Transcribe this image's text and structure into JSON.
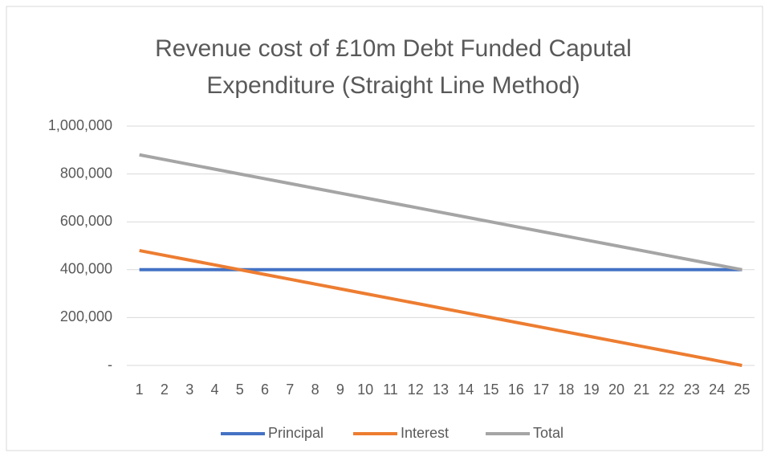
{
  "chart_data": {
    "type": "line",
    "title": "Revenue cost of £10m Debt Funded Caputal Expenditure (Straight Line Method)",
    "categories": [
      "1",
      "2",
      "3",
      "4",
      "5",
      "6",
      "7",
      "8",
      "9",
      "10",
      "11",
      "12",
      "13",
      "14",
      "15",
      "16",
      "17",
      "18",
      "19",
      "20",
      "21",
      "22",
      "23",
      "24",
      "25"
    ],
    "series": [
      {
        "name": "Principal",
        "color": "#4472c4",
        "values": [
          400000,
          400000,
          400000,
          400000,
          400000,
          400000,
          400000,
          400000,
          400000,
          400000,
          400000,
          400000,
          400000,
          400000,
          400000,
          400000,
          400000,
          400000,
          400000,
          400000,
          400000,
          400000,
          400000,
          400000,
          400000
        ]
      },
      {
        "name": "Interest",
        "color": "#ed7d31",
        "values": [
          480000,
          460000,
          440000,
          420000,
          400000,
          380000,
          360000,
          340000,
          320000,
          300000,
          280000,
          260000,
          240000,
          220000,
          200000,
          180000,
          160000,
          140000,
          120000,
          100000,
          80000,
          60000,
          40000,
          20000,
          0
        ]
      },
      {
        "name": "Total",
        "color": "#a5a5a5",
        "values": [
          880000,
          860000,
          840000,
          820000,
          800000,
          780000,
          760000,
          740000,
          720000,
          700000,
          680000,
          660000,
          640000,
          620000,
          600000,
          580000,
          560000,
          540000,
          520000,
          500000,
          480000,
          460000,
          440000,
          420000,
          400000
        ]
      }
    ],
    "ylim": [
      0,
      1000000
    ],
    "yticks": [
      {
        "value": 0,
        "label": "-"
      },
      {
        "value": 200000,
        "label": "200,000"
      },
      {
        "value": 400000,
        "label": "400,000"
      },
      {
        "value": 600000,
        "label": "600,000"
      },
      {
        "value": 800000,
        "label": "800,000"
      },
      {
        "value": 1000000,
        "label": "1,000,000"
      }
    ],
    "grid": true,
    "legend": "bottom"
  }
}
